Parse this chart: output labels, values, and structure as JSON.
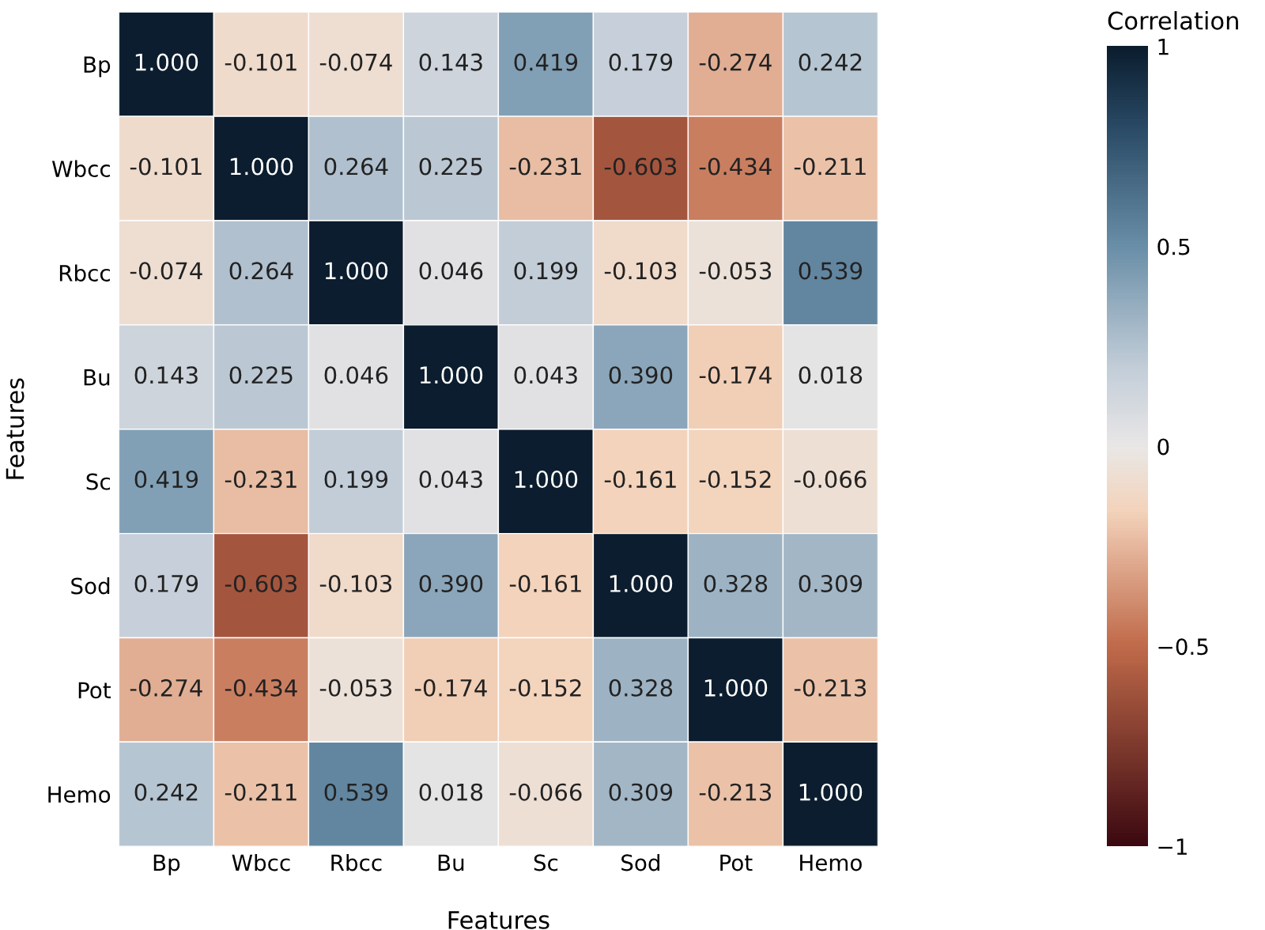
{
  "chart_data": {
    "type": "heatmap",
    "xlabel": "Features",
    "ylabel": "Features",
    "clabel": "Correlation",
    "categories": [
      "Bp",
      "Wbcc",
      "Rbcc",
      "Bu",
      "Sc",
      "Sod",
      "Pot",
      "Hemo"
    ],
    "y_categories": [
      "Bp",
      "Wbcc",
      "Rbcc",
      "Bu",
      "Sc",
      "Sod",
      "Pot",
      "Hemo"
    ],
    "cells": [
      [
        1.0,
        -0.101,
        -0.074,
        0.143,
        0.419,
        0.179,
        -0.274,
        0.242
      ],
      [
        -0.101,
        1.0,
        0.264,
        0.225,
        -0.231,
        -0.603,
        -0.434,
        -0.211
      ],
      [
        -0.074,
        0.264,
        1.0,
        0.046,
        0.199,
        -0.103,
        -0.053,
        0.539
      ],
      [
        0.143,
        0.225,
        0.046,
        1.0,
        0.043,
        0.39,
        -0.174,
        0.018
      ],
      [
        0.419,
        -0.231,
        0.199,
        0.043,
        1.0,
        -0.161,
        -0.152,
        -0.066
      ],
      [
        0.179,
        -0.603,
        -0.103,
        0.39,
        -0.161,
        1.0,
        0.328,
        0.309
      ],
      [
        -0.274,
        -0.434,
        -0.053,
        -0.174,
        -0.152,
        0.328,
        1.0,
        -0.213
      ],
      [
        0.242,
        -0.211,
        0.539,
        0.018,
        -0.066,
        0.309,
        -0.213,
        1.0
      ]
    ],
    "cell_labels": [
      [
        "1.000",
        "-0.101",
        "-0.074",
        "0.143",
        "0.419",
        "0.179",
        "-0.274",
        "0.242"
      ],
      [
        "-0.101",
        "1.000",
        "0.264",
        "0.225",
        "-0.231",
        "-0.603",
        "-0.434",
        "-0.211"
      ],
      [
        "-0.074",
        "0.264",
        "1.000",
        "0.046",
        "0.199",
        "-0.103",
        "-0.053",
        "0.539"
      ],
      [
        "0.143",
        "0.225",
        "0.046",
        "1.000",
        "0.043",
        "0.390",
        "-0.174",
        "0.018"
      ],
      [
        "0.419",
        "-0.231",
        "0.199",
        "0.043",
        "1.000",
        "-0.161",
        "-0.152",
        "-0.066"
      ],
      [
        "0.179",
        "-0.603",
        "-0.103",
        "0.390",
        "-0.161",
        "1.000",
        "0.328",
        "0.309"
      ],
      [
        "-0.274",
        "-0.434",
        "-0.053",
        "-0.174",
        "-0.152",
        "0.328",
        "1.000",
        "-0.213"
      ],
      [
        "0.242",
        "-0.211",
        "0.539",
        "0.018",
        "-0.066",
        "0.309",
        "-0.213",
        "1.000"
      ]
    ],
    "clim": [
      -1,
      1
    ],
    "cticks": [
      1,
      {
        "value": 0.5,
        "label": "0.5"
      },
      0,
      {
        "value": -0.5,
        "label": "−0.5"
      },
      {
        "value": -1,
        "label": "−1"
      }
    ]
  }
}
